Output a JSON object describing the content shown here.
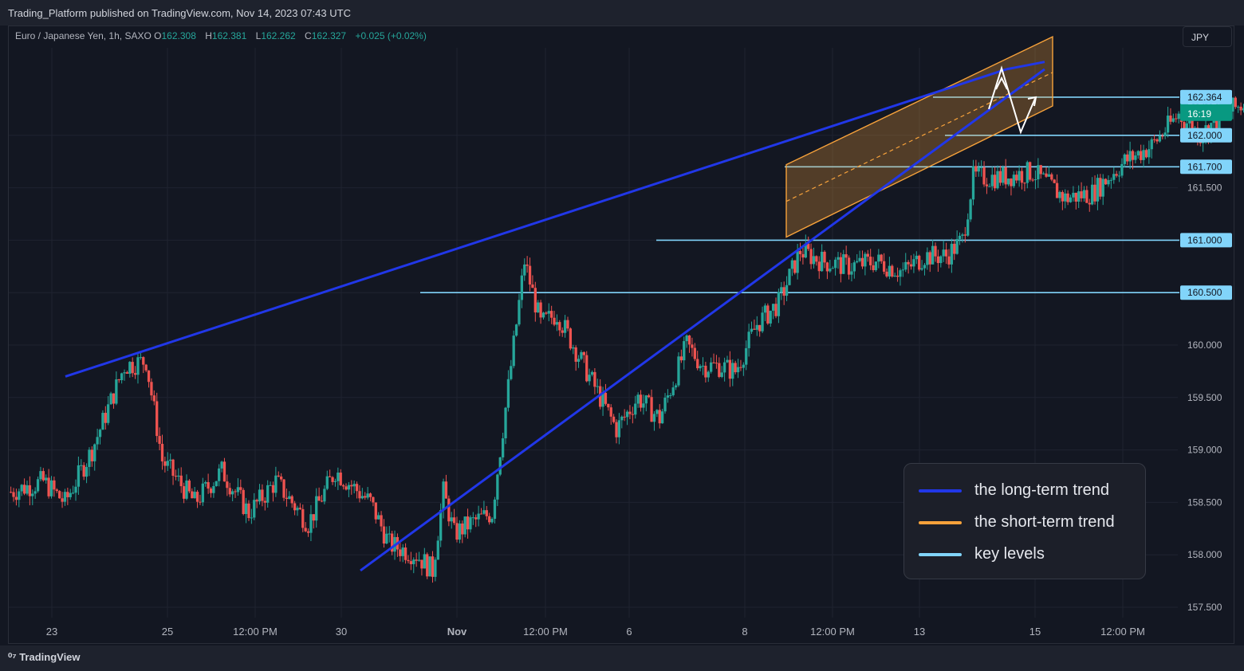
{
  "header": {
    "published": "Trading_Platform published on TradingView.com, Nov 14, 2023 07:43 UTC"
  },
  "symbol": {
    "name": "Euro / Japanese Yen, 1h, SAXO",
    "o_label": "O",
    "o_value": "162.308",
    "h_label": "H",
    "h_value": "162.381",
    "l_label": "L",
    "l_value": "162.262",
    "c_label": "C",
    "c_value": "162.327",
    "change": "+0.025 (+0.02%)"
  },
  "currency_button": "JPY",
  "footer": {
    "brand": "TradingView"
  },
  "colors": {
    "up": "#26a69a",
    "down": "#ef5350",
    "long_trend": "#2137e8",
    "short_trend": "#f7a23b",
    "key_level": "#81d4fa",
    "last_price": "#089981"
  },
  "legend": [
    {
      "label": "the long-term trend",
      "color": "#2137e8"
    },
    {
      "label": "the short-term trend",
      "color": "#f7a23b"
    },
    {
      "label": "key levels",
      "color": "#81d4fa"
    }
  ],
  "chart_data": {
    "type": "candlestick",
    "title": "Euro / Japanese Yen, 1h, SAXO",
    "ylim": [
      157.35,
      162.9
    ],
    "y_ticks": [
      "157.500",
      "158.000",
      "158.500",
      "159.000",
      "159.500",
      "160.000",
      "161.500"
    ],
    "x_ticks": [
      "23",
      "25",
      "12:00 PM",
      "30",
      "Nov",
      "12:00 PM",
      "6",
      "8",
      "12:00 PM",
      "13",
      "15",
      "12:00 PM"
    ],
    "key_levels": [
      "162.364",
      "162.000",
      "161.700",
      "161.000",
      "160.500"
    ],
    "last_price": {
      "value": "162.327",
      "countdown": "16:19"
    },
    "path_anchors": [
      [
        0,
        158.6
      ],
      [
        12,
        158.7
      ],
      [
        20,
        158.5
      ],
      [
        30,
        159.0
      ],
      [
        42,
        159.8
      ],
      [
        50,
        159.85
      ],
      [
        56,
        158.9
      ],
      [
        68,
        158.5
      ],
      [
        78,
        158.8
      ],
      [
        88,
        158.4
      ],
      [
        98,
        158.7
      ],
      [
        110,
        158.3
      ],
      [
        120,
        158.8
      ],
      [
        133,
        158.5
      ],
      [
        140,
        158.1
      ],
      [
        150,
        158.0
      ],
      [
        156,
        157.85
      ],
      [
        160,
        158.6
      ],
      [
        164,
        158.2
      ],
      [
        170,
        158.3
      ],
      [
        178,
        158.4
      ],
      [
        190,
        160.8
      ],
      [
        196,
        160.2
      ],
      [
        202,
        160.3
      ],
      [
        210,
        159.9
      ],
      [
        218,
        159.5
      ],
      [
        224,
        159.2
      ],
      [
        232,
        159.5
      ],
      [
        240,
        159.3
      ],
      [
        250,
        160.0
      ],
      [
        256,
        159.8
      ],
      [
        262,
        159.8
      ],
      [
        268,
        159.75
      ],
      [
        276,
        160.2
      ],
      [
        284,
        160.4
      ],
      [
        292,
        160.9
      ],
      [
        300,
        160.8
      ],
      [
        310,
        160.75
      ],
      [
        320,
        160.8
      ],
      [
        330,
        160.7
      ],
      [
        338,
        160.85
      ],
      [
        346,
        160.85
      ],
      [
        352,
        161.0
      ],
      [
        356,
        161.6
      ],
      [
        366,
        161.6
      ],
      [
        378,
        161.65
      ],
      [
        390,
        161.4
      ],
      [
        400,
        161.45
      ],
      [
        412,
        161.75
      ],
      [
        422,
        161.9
      ],
      [
        432,
        162.2
      ],
      [
        440,
        162.0
      ],
      [
        448,
        162.2
      ],
      [
        456,
        162.3
      ]
    ]
  }
}
